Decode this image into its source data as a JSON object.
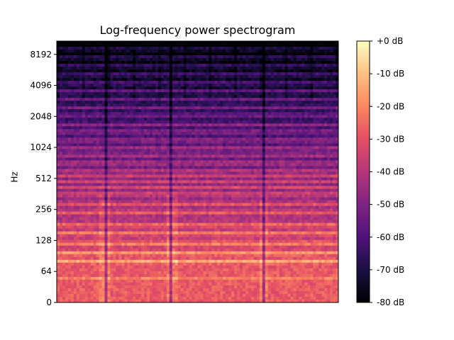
{
  "chart_data": {
    "type": "heatmap",
    "title": "Log-frequency power spectrogram",
    "xlabel": "",
    "ylabel": "Hz",
    "y_scale": "log2 (symlog near 0)",
    "y_ticks": [
      "0",
      "64",
      "128",
      "256",
      "512",
      "1024",
      "2048",
      "4096",
      "8192"
    ],
    "y_tick_values": [
      0,
      64,
      128,
      256,
      512,
      1024,
      2048,
      4096,
      8192
    ],
    "ylim": [
      0,
      11025
    ],
    "x_ticks": [],
    "colormap": "magma",
    "colorbar": {
      "ticks": [
        "+0 dB",
        "-10 dB",
        "-20 dB",
        "-30 dB",
        "-40 dB",
        "-50 dB",
        "-60 dB",
        "-70 dB",
        "-80 dB"
      ],
      "tick_values": [
        0,
        -10,
        -20,
        -30,
        -40,
        -50,
        -60,
        -70,
        -80
      ],
      "range": [
        -80,
        0
      ]
    },
    "harmonic_bands_hz": [
      48,
      80,
      96,
      120,
      150,
      180,
      240,
      290,
      360,
      420,
      480,
      540,
      600,
      720,
      860,
      1000,
      1200,
      1450,
      1700,
      2100,
      2500,
      3000,
      3600,
      4300,
      5200,
      6300,
      7600,
      9200
    ],
    "transient_positions": [
      0.175,
      0.405,
      0.735
    ]
  }
}
